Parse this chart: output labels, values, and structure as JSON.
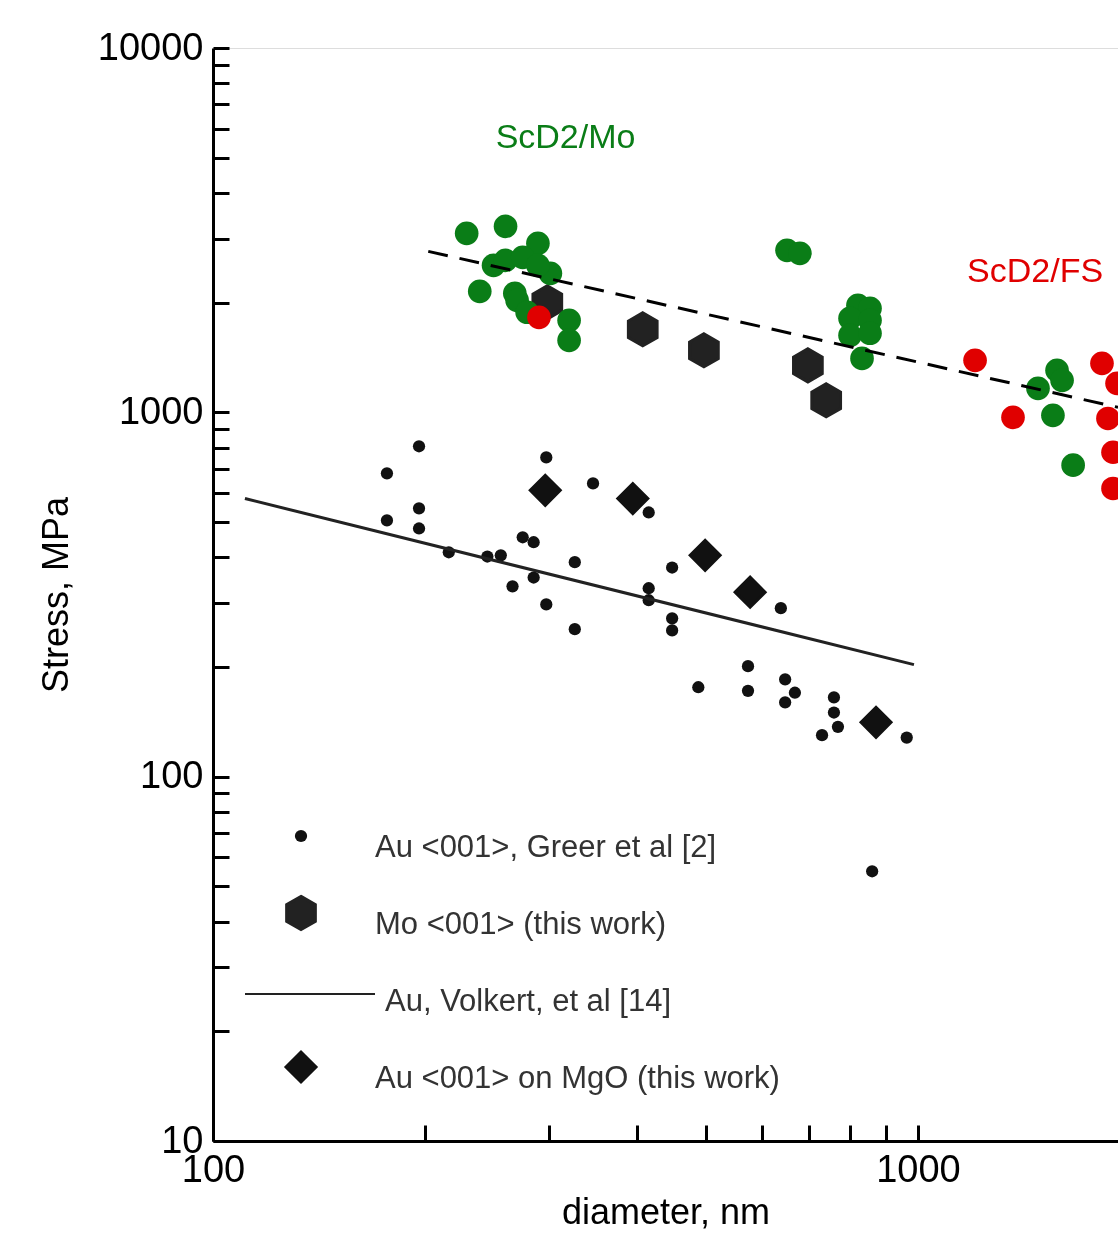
{
  "chart_data": {
    "type": "scatter",
    "xlabel": "diameter, nm",
    "ylabel": "Stress, MPa",
    "log": "xy",
    "grid": false,
    "legend": "bottom left",
    "xlim": [
      100,
      1922
    ],
    "ylim": [
      10,
      10000
    ],
    "xticks": [
      100,
      {
        "value": 200,
        "label": null
      },
      {
        "value": 300,
        "label": null
      },
      {
        "value": 400,
        "label": null
      },
      {
        "value": 500,
        "label": null
      },
      {
        "value": 600,
        "label": null
      },
      {
        "value": 700,
        "label": null
      },
      {
        "value": 800,
        "label": null
      },
      {
        "value": 900,
        "label": null
      },
      1000
    ],
    "yticks": [
      10,
      {
        "value": 20,
        "label": null
      },
      {
        "value": 30,
        "label": null
      },
      {
        "value": 40,
        "label": null
      },
      {
        "value": 50,
        "label": null
      },
      {
        "value": 60,
        "label": null
      },
      {
        "value": 70,
        "label": null
      },
      {
        "value": 80,
        "label": null
      },
      {
        "value": 90,
        "label": null
      },
      100,
      {
        "value": 200,
        "label": null
      },
      {
        "value": 300,
        "label": null
      },
      {
        "value": 400,
        "label": null
      },
      {
        "value": 500,
        "label": null
      },
      {
        "value": 600,
        "label": null
      },
      {
        "value": 700,
        "label": null
      },
      {
        "value": 800,
        "label": null
      },
      {
        "value": 900,
        "label": null
      },
      1000,
      {
        "value": 2000,
        "label": null
      },
      {
        "value": 3000,
        "label": null
      },
      {
        "value": 4000,
        "label": null
      },
      {
        "value": 5000,
        "label": null
      },
      {
        "value": 6000,
        "label": null
      },
      {
        "value": 7000,
        "label": null
      },
      {
        "value": 8000,
        "label": null
      },
      {
        "value": 9000,
        "label": null
      },
      10000
    ],
    "series": [
      {
        "name": "Au <001>, Greer et al [2]",
        "marker": "circle",
        "color": "#111111",
        "x": [
          176.5,
          196,
          176.5,
          196,
          196,
          216,
          245,
          256,
          275,
          285,
          285,
          266,
          297,
          297,
          326,
          326,
          346,
          415,
          415,
          415,
          448,
          448,
          448,
          488,
          574,
          574,
          639,
          648,
          669,
          648,
          760,
          760,
          770,
          731,
          964,
          861
        ],
        "values": [
          680,
          807,
          505,
          545,
          480,
          413,
          402,
          405,
          454,
          440,
          352,
          333,
          297,
          752,
          388,
          254,
          638,
          531,
          329,
          305,
          375,
          272,
          252,
          176,
          201,
          172,
          290,
          185,
          170,
          160,
          165,
          150,
          137,
          130,
          128,
          55
        ]
      },
      {
        "name": "Mo <001> (this work)",
        "color": "#222222",
        "x": [
          298,
          407,
          497,
          698,
          741
        ],
        "values": [
          2004,
          1690,
          1480,
          1346,
          1079
        ]
      },
      {
        "name": "Au, Volkert, et al [14]",
        "type": "line",
        "marker": "none",
        "line_style": "solid",
        "color": "#222222",
        "x": [
          111,
          987
        ],
        "values": [
          580,
          203
        ]
      },
      {
        "name": "Au <001> on MgO (this work)",
        "marker": "diamond",
        "color": "#111111",
        "x": [
          296,
          394,
          499,
          578,
          872
        ],
        "values": [
          611,
          580,
          405,
          321,
          141
        ]
      },
      {
        "name": "ScD2/Mo",
        "marker": "circle",
        "color": "#0a7d17",
        "x": [
          260,
          229,
          289,
          250,
          260,
          275,
          301,
          239,
          268,
          270,
          279,
          320,
          320,
          289,
          652,
          680,
          822,
          855,
          801,
          855,
          801,
          855,
          833,
          1480,
          1575,
          1601,
          1554,
          1660
        ],
        "values": [
          3240,
          3099,
          2910,
          2532,
          2614,
          2664,
          2407,
          2148,
          2122,
          2030,
          1882,
          1789,
          1576,
          2532,
          2784,
          2732,
          1966,
          1930,
          1811,
          1789,
          1627,
          1648,
          1406,
          1164,
          1304,
          1224,
          981,
          716
        ]
      },
      {
        "name": "ScD2/FS",
        "marker": "circle",
        "color": "#e00000",
        "x": [
          1205,
          290,
          1364,
          1824,
          1916,
          1860,
          1891,
          1891
        ],
        "values": [
          1389,
          1823,
          969,
          1363,
          1201,
          962,
          777,
          618
        ]
      },
      {
        "type": "line",
        "marker": "none",
        "line_style": "dashed",
        "color": "#000000",
        "x": [
          202,
          1922
        ],
        "values": [
          2766,
          1032
        ]
      }
    ]
  }
}
